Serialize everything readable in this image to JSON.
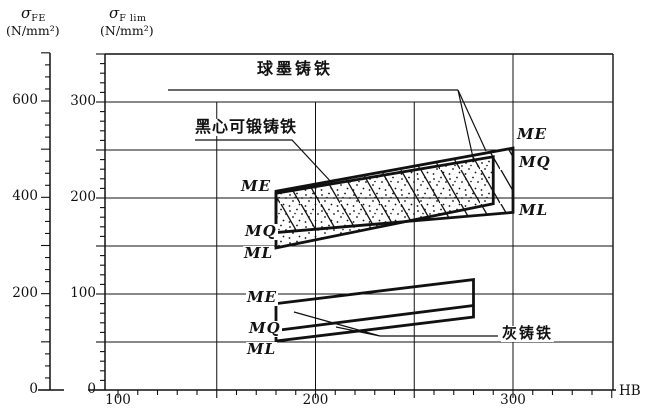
{
  "figure": {
    "y1_axis": {
      "symbol": "σ",
      "subscript": "FE",
      "unit": "(N/mm²)"
    },
    "y2_axis": {
      "symbol": "σ",
      "subscript": "F lim",
      "unit": "(N/mm²)"
    },
    "x_axis": {
      "unit_label": "HB"
    },
    "materials": {
      "ductile": "球墨铸铁",
      "malleable": "黑心可锻铸铁",
      "grey": "灰铸铁"
    },
    "grades": {
      "me": "ME",
      "mq": "MQ",
      "ml": "ML"
    }
  },
  "chart_data": {
    "type": "area",
    "title": "",
    "xlabel": "HB",
    "x_axis": {
      "range": [
        100,
        350
      ],
      "major_ticks": [
        100,
        200,
        300
      ],
      "minor_step": 10,
      "long_tick_step": 50
    },
    "y_axis_outer": {
      "label": "σFE (N/mm²)",
      "range": [
        0,
        700
      ],
      "major_ticks": [
        0,
        200,
        400,
        600
      ],
      "minor_step": 25,
      "long_tick_step": 100
    },
    "y_axis_inner": {
      "label": "σF lim (N/mm²)",
      "range": [
        0,
        350
      ],
      "major_ticks": [
        0,
        100,
        200,
        300
      ],
      "minor_step": 10,
      "long_tick_step": 50
    },
    "gridlines": {
      "horizontal_sigma_flim": [
        50,
        100,
        150,
        200,
        250,
        300
      ],
      "vertical_hb": [
        150,
        200,
        250
      ],
      "vertical_hb_full": [
        300
      ],
      "grid_on": true
    },
    "series": [
      {
        "name": "球墨铸铁",
        "grades": [
          "ME",
          "MQ",
          "ML"
        ],
        "fill": "hatch",
        "band": {
          "hb": [
            180,
            300
          ],
          "sigma_flim_top": [
            207,
            252
          ],
          "sigma_flim_bottom": [
            164,
            185
          ]
        }
      },
      {
        "name": "黑心可锻铸铁",
        "grades": [
          "ME",
          "MQ",
          "ML"
        ],
        "fill": "dots",
        "band": {
          "hb": [
            180,
            290
          ],
          "sigma_flim_top": [
            205,
            243
          ],
          "sigma_flim_bottom": [
            148,
            194
          ]
        }
      },
      {
        "name": "灰铸铁",
        "grades": [
          "ME",
          "MQ",
          "ML"
        ],
        "fill": "none",
        "band": {
          "hb": [
            180,
            280
          ],
          "sigma_flim_top": [
            90,
            115
          ],
          "sigma_flim_bottom": [
            51,
            76
          ]
        },
        "divider_sigma_flim": [
          62,
          88
        ]
      }
    ]
  }
}
